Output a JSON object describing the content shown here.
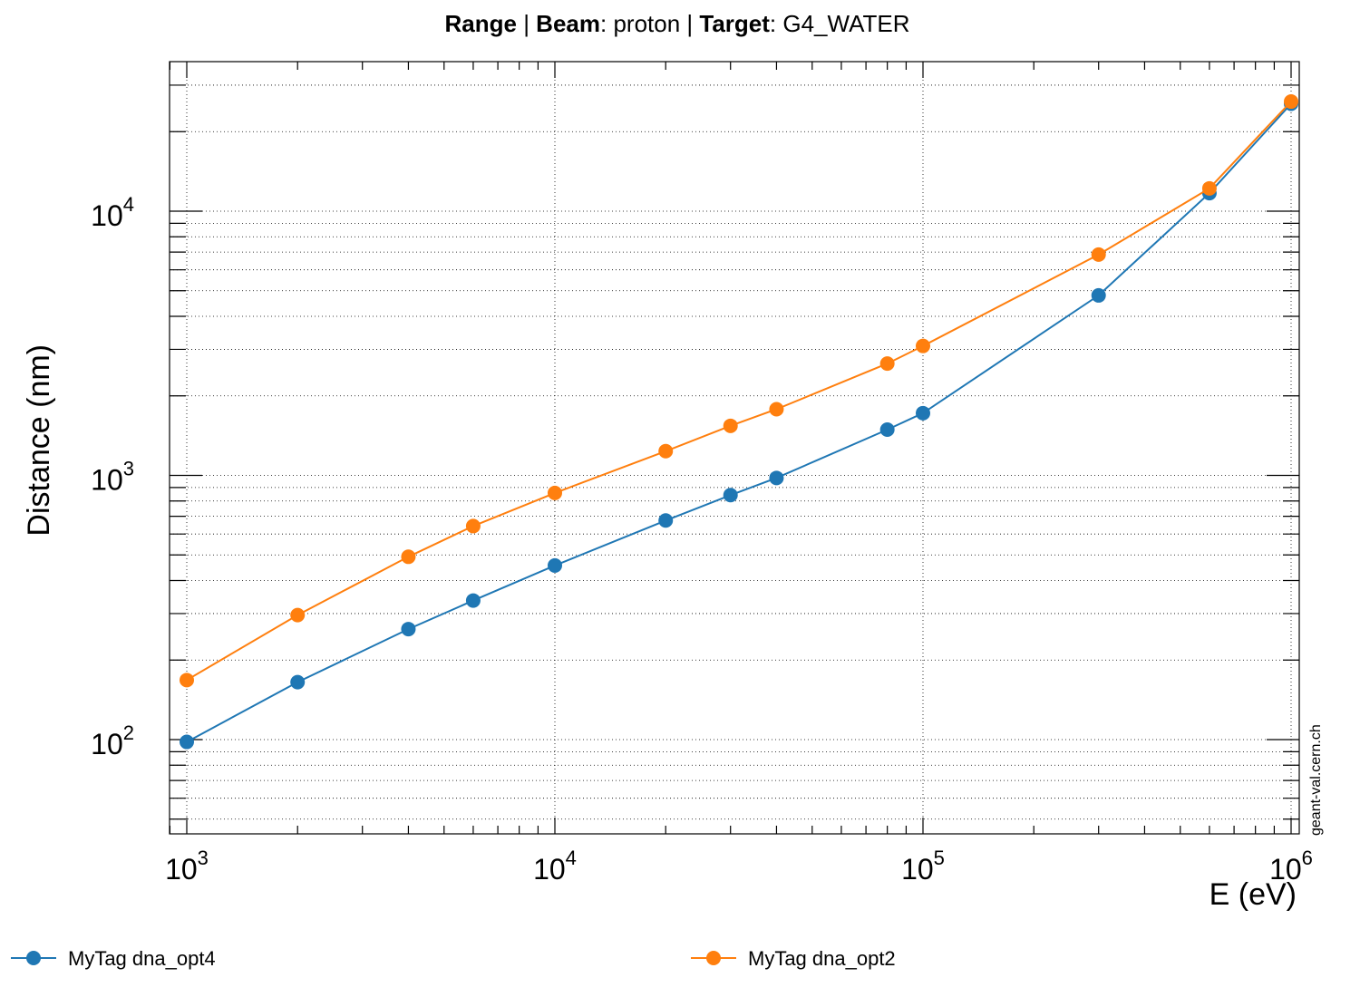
{
  "title": {
    "range_label": "Range",
    "sep1": " | ",
    "beam_label": "Beam",
    "beam_value": ": proton",
    "sep2": " | ",
    "target_label": "Target",
    "target_value": ": G4_WATER"
  },
  "watermark": "geant-val.cern.ch",
  "colors": {
    "opt4": "#1f77b4",
    "opt2": "#ff7f0e"
  },
  "chart_data": {
    "type": "line",
    "title": "Range | Beam: proton | Target: G4_WATER",
    "xlabel": "E (eV)",
    "ylabel": "Distance (nm)",
    "xscale": "log",
    "yscale": "log",
    "xlim": [
      900,
      1050000
    ],
    "ylim": [
      45,
      35000
    ],
    "grid": true,
    "legend_position": "bottom",
    "x_ticks": [
      {
        "value": 1000,
        "base": "10",
        "exp": "3"
      },
      {
        "value": 10000,
        "base": "10",
        "exp": "4"
      },
      {
        "value": 100000,
        "base": "10",
        "exp": "5"
      },
      {
        "value": 1000000,
        "base": "10",
        "exp": "6"
      }
    ],
    "y_ticks": [
      {
        "value": 100,
        "base": "10",
        "exp": "2"
      },
      {
        "value": 1000,
        "base": "10",
        "exp": "3"
      },
      {
        "value": 10000,
        "base": "10",
        "exp": "4"
      }
    ],
    "series": [
      {
        "name": "MyTag dna_opt4",
        "color": "#1f77b4",
        "x": [
          1000,
          2000,
          4000,
          6000,
          10000,
          20000,
          30000,
          40000,
          80000,
          100000,
          300000,
          600000,
          1000000
        ],
        "y": [
          98,
          165,
          262,
          336,
          456,
          675,
          842,
          978,
          1490,
          1720,
          4800,
          11700,
          25500
        ]
      },
      {
        "name": "MyTag dna_opt2",
        "color": "#ff7f0e",
        "x": [
          1000,
          2000,
          4000,
          6000,
          10000,
          20000,
          30000,
          40000,
          80000,
          100000,
          300000,
          600000,
          1000000
        ],
        "y": [
          168,
          296,
          492,
          643,
          858,
          1235,
          1540,
          1780,
          2650,
          3090,
          6850,
          12200,
          26000
        ]
      }
    ]
  }
}
